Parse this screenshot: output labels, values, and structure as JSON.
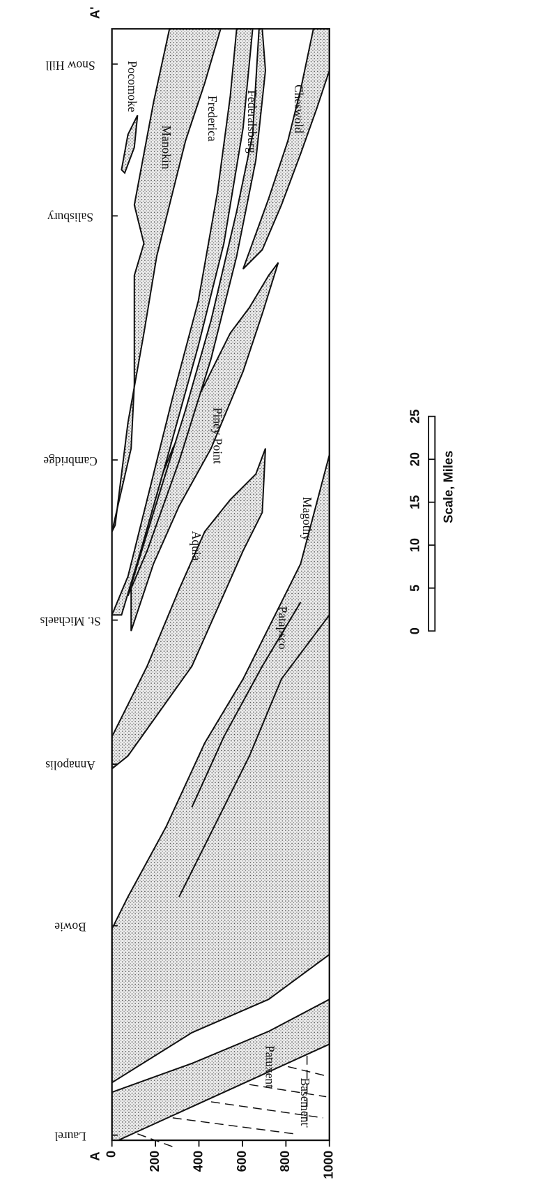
{
  "section": {
    "start_label": "A",
    "end_label": "A'",
    "localities": [
      "Snow Hill",
      "Salisbury",
      "Cambridge",
      "St. Michaels",
      "Annapolis",
      "Bowie",
      "Laurel"
    ],
    "depth_ticks": [
      "0",
      "200",
      "400",
      "600",
      "800",
      "1000"
    ],
    "units": [
      "Pocomoke",
      "Manokin",
      "Frederica",
      "Federalsburg",
      "Cheswold",
      "Piney Point",
      "Aquia",
      "Magothy",
      "Patapsco",
      "Patuxent",
      "Basement"
    ]
  },
  "scale": {
    "ticks": [
      "0",
      "5",
      "10",
      "15",
      "20",
      "25"
    ],
    "label": "Scale, Miles"
  }
}
